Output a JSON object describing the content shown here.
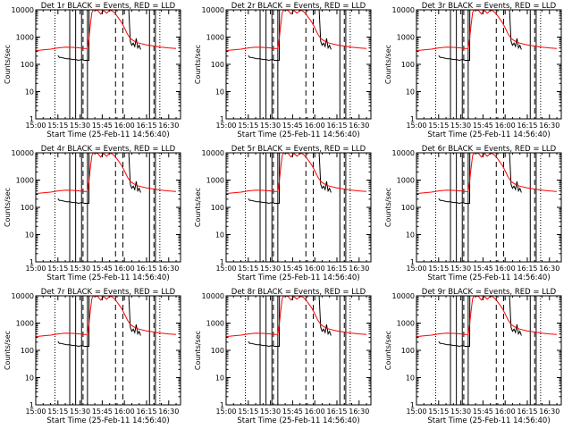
{
  "figure": {
    "panel_titles": [
      "Det 1r BLACK = Events, RED = LLD",
      "Det 2r BLACK = Events, RED = LLD",
      "Det 3r BLACK = Events, RED = LLD",
      "Det 4r BLACK = Events, RED = LLD",
      "Det 5r BLACK = Events, RED = LLD",
      "Det 6r BLACK = Events, RED = LLD",
      "Det 7r BLACK = Events, RED = LLD",
      "Det 8r BLACK = Events, RED = LLD",
      "Det 9r BLACK = Events, RED = LLD"
    ],
    "xlabel": "Start Time (25-Feb-11 14:56:40)",
    "ylabel": "Counts/sec",
    "colors": {
      "events": "#000000",
      "lld": "#ff0000",
      "axes": "#000000",
      "background": "#ffffff"
    }
  },
  "chart_data": {
    "type": "line",
    "layout": "3x3 grid, identical panels",
    "x_unit": "minutes after 15:00",
    "xlim": [
      0,
      98
    ],
    "xtick_values": [
      0,
      15,
      30,
      45,
      60,
      75,
      90
    ],
    "xtick_labels": [
      "15:00",
      "15:15",
      "15:30",
      "15:45",
      "16:00",
      "16:15",
      "16:30"
    ],
    "y_scale": "log",
    "ylim": [
      1,
      10000
    ],
    "ytick_values": [
      1,
      10,
      100,
      1000,
      10000
    ],
    "ytick_labels": [
      "1",
      "10",
      "100",
      "1000",
      "10000"
    ],
    "grid": false,
    "series": [
      {
        "role": "events",
        "x": [
          15,
          16,
          17,
          19,
          21,
          23,
          25,
          27,
          29,
          31,
          33,
          35,
          36,
          36.1,
          37,
          38,
          39,
          40,
          62,
          63,
          64,
          65,
          66,
          67,
          68,
          69,
          70,
          71
        ],
        "y": [
          210,
          180,
          180,
          170,
          160,
          160,
          150,
          150,
          140,
          150,
          140,
          140,
          140,
          10000,
          10000,
          10000,
          10000,
          10000,
          10000,
          10000,
          700,
          500,
          600,
          450,
          900,
          400,
          500,
          350
        ]
      },
      {
        "role": "lld",
        "x": [
          0,
          5,
          10,
          15,
          20,
          25,
          30,
          33,
          35,
          36,
          37,
          38,
          39,
          40,
          42,
          44,
          46,
          48,
          50,
          52,
          54,
          56,
          58,
          60,
          62,
          64,
          66,
          68,
          70,
          75,
          80,
          85,
          90,
          95
        ],
        "y": [
          320,
          340,
          360,
          400,
          430,
          420,
          400,
          380,
          380,
          900,
          3000,
          8000,
          10000,
          10000,
          9500,
          7000,
          9500,
          7500,
          9800,
          9000,
          7000,
          5000,
          3500,
          2200,
          1300,
          900,
          750,
          650,
          600,
          520,
          470,
          430,
          400,
          380
        ]
      }
    ],
    "vlines_dotted": [
      13,
      84
    ],
    "vlines_solid": [
      23,
      27,
      31,
      35,
      77,
      81
    ],
    "vlines_dashed": [
      32,
      54,
      59,
      80
    ]
  }
}
